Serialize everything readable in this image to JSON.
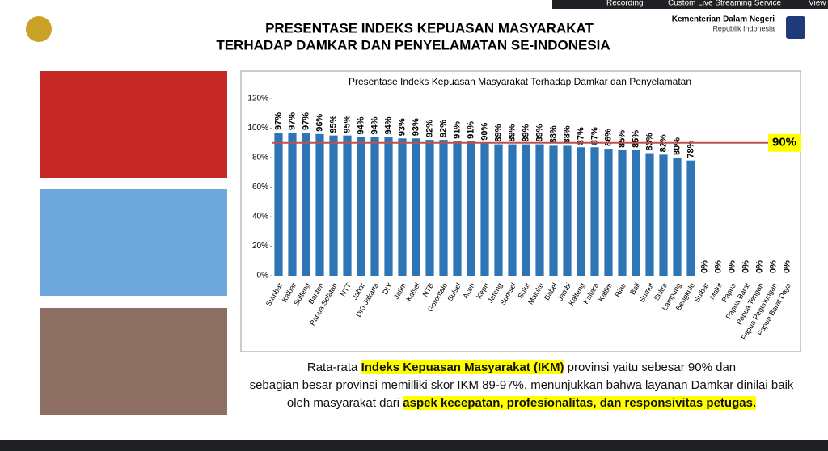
{
  "toolbar": {
    "recording": "Recording",
    "service": "Custom Live Streaming Service",
    "view": "View"
  },
  "header": {
    "title_lines": [
      "PRESENTASE INDEKS KEPUASAN MASYARAKAT",
      "TERHADAP DAMKAR DAN PENYELAMATAN SE-INDONESIA"
    ],
    "org": "Kementerian Dalam Negeri",
    "org_sub": "Republik Indonesia"
  },
  "chart_data": {
    "type": "bar",
    "title": "Presentase Indeks Kepuasan Masyarakat Terhadap Damkar dan Penyelamatan",
    "categories": [
      "Sumbar",
      "Kalbar",
      "Sulteng",
      "Banten",
      "Papua Selatan",
      "NTT",
      "Jabar",
      "DKI Jakarta",
      "DIY",
      "Jatim",
      "Kalsel",
      "NTB",
      "Gorontalo",
      "Sulsel",
      "Aceh",
      "Kepri",
      "Jateng",
      "Sumsel",
      "Sulut",
      "Maluku",
      "Babel",
      "Jambi",
      "Kalteng",
      "Kaltara",
      "Kaltim",
      "Riau",
      "Bali",
      "Sumut",
      "Sultra",
      "Lampung",
      "Bengkulu",
      "Sulbar",
      "Malut",
      "Papua",
      "Papua Barat",
      "Papua Tengah",
      "Papua Pegunungan",
      "Papua Barat Daya"
    ],
    "values": [
      97,
      97,
      97,
      96,
      95,
      95,
      94,
      94,
      94,
      93,
      93,
      92,
      92,
      91,
      91,
      90,
      89,
      89,
      89,
      89,
      88,
      88,
      87,
      87,
      86,
      85,
      85,
      83,
      82,
      80,
      78,
      0,
      0,
      0,
      0,
      0,
      0,
      0
    ],
    "value_labels": [
      "97%",
      "97%",
      "97%",
      "96%",
      "95%",
      "95%",
      "94%",
      "94%",
      "94%",
      "93%",
      "93%",
      "92%",
      "92%",
      "91%",
      "91%",
      "90%",
      "89%",
      "89%",
      "89%",
      "89%",
      "88%",
      "88%",
      "87%",
      "87%",
      "86%",
      "85%",
      "85%",
      "83%",
      "82%",
      "80%",
      "78%",
      "0%",
      "0%",
      "0%",
      "0%",
      "0%",
      "0%",
      "0%"
    ],
    "color": "#2e75b6",
    "ylim": [
      0,
      120
    ],
    "yticks": [
      {
        "value": 0,
        "label": "0%"
      },
      {
        "value": 20,
        "label": "20%"
      },
      {
        "value": 40,
        "label": "40%"
      },
      {
        "value": 60,
        "label": "60%"
      },
      {
        "value": 80,
        "label": "80%"
      },
      {
        "value": 100,
        "label": "100%"
      },
      {
        "value": 120,
        "label": "120%"
      }
    ],
    "target": {
      "value": 90,
      "label": "90%",
      "color": "#c0504d"
    }
  },
  "paragraph": [
    [
      {
        "text": "Rata-rata ",
        "highlight": false
      },
      {
        "text": "Indeks Kepuasan Masyarakat (IKM)",
        "highlight": true
      },
      {
        "text": " provinsi yaitu sebesar 90% dan",
        "highlight": false
      }
    ],
    [
      {
        "text": "sebagian besar provinsi memilliki skor IKM 89-97%, menunjukkan bahwa layanan Damkar dinilai baik",
        "highlight": false
      }
    ],
    [
      {
        "text": "oleh masyarakat dari ",
        "highlight": false
      },
      {
        "text": "aspek kecepatan, profesionalitas, dan responsivitas petugas.",
        "highlight": true
      }
    ]
  ]
}
